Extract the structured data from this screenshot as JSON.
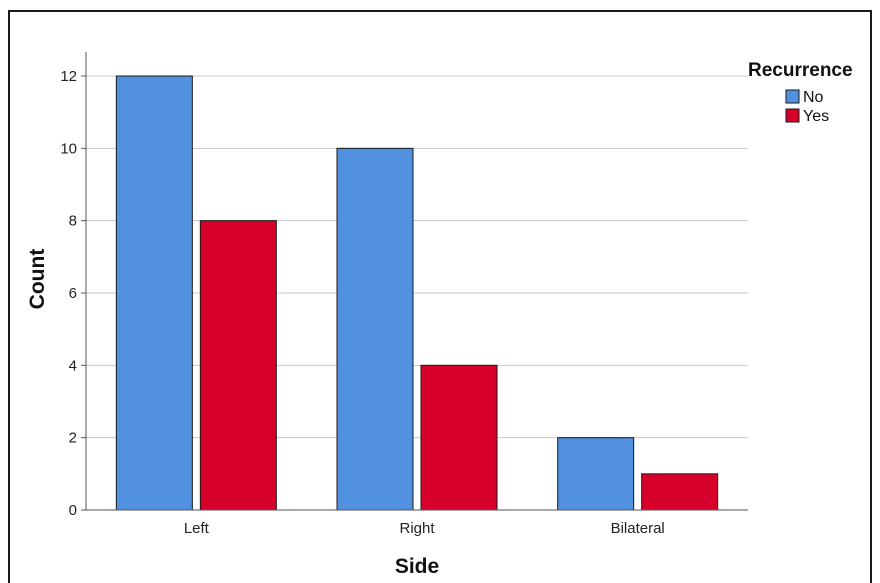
{
  "chart_data": {
    "type": "bar",
    "categories": [
      "Left",
      "Right",
      "Bilateral"
    ],
    "series": [
      {
        "name": "No",
        "values": [
          12,
          10,
          2
        ],
        "color": "#5291e0"
      },
      {
        "name": "Yes",
        "values": [
          8,
          4,
          1
        ],
        "color": "#d7002b"
      }
    ],
    "title": "",
    "xlabel": "Side",
    "ylabel": "Count",
    "ylim": [
      0,
      12
    ],
    "yticks": [
      "0",
      "2",
      "4",
      "6",
      "8",
      "10",
      "12"
    ],
    "grid": true,
    "legend": {
      "title": "Recurrence",
      "placement": "top-right"
    }
  }
}
